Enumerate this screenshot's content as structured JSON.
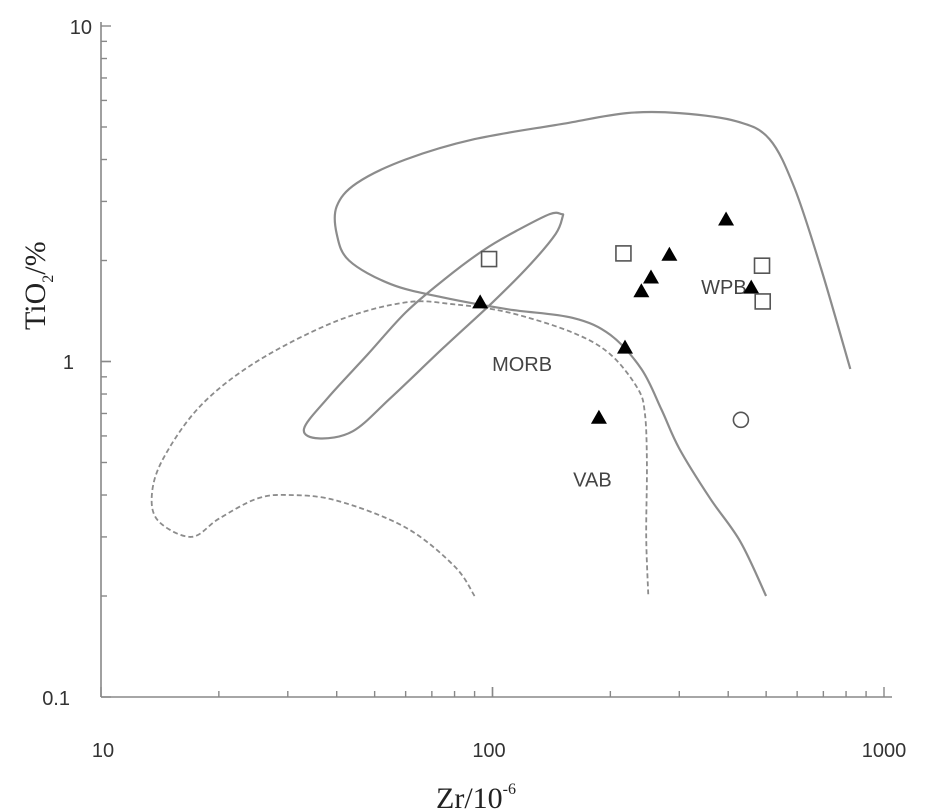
{
  "chart_data": {
    "type": "scatter",
    "scale": "log-log",
    "xlim": [
      10,
      1000
    ],
    "ylim": [
      0.1,
      10
    ],
    "x_ticks": [
      "10",
      "100",
      "1000"
    ],
    "y_ticks": [
      "10",
      "1",
      "0.1"
    ],
    "xlabel": {
      "base": "Zr/10",
      "exponent": "-6"
    },
    "ylabel": {
      "base": "TiO",
      "subscript": "2",
      "suffix": "/%"
    },
    "field_labels": [
      {
        "text": "MORB",
        "x": 119,
        "y": 0.97
      },
      {
        "text": "WPB",
        "x": 390,
        "y": 1.65
      },
      {
        "text": "VAB",
        "x": 180,
        "y": 0.44
      }
    ],
    "fields": [
      {
        "label": "WPB",
        "style": "solid",
        "points": [
          [
            820,
            0.95
          ],
          [
            690,
            1.9
          ],
          [
            590,
            3.3
          ],
          [
            510,
            4.6
          ],
          [
            420,
            5.2
          ],
          [
            300,
            5.5
          ],
          [
            220,
            5.5
          ],
          [
            150,
            5.1
          ],
          [
            90,
            4.6
          ],
          [
            60,
            4.0
          ],
          [
            45,
            3.4
          ],
          [
            40,
            2.9
          ],
          [
            40,
            2.4
          ],
          [
            43,
            2.0
          ],
          [
            55,
            1.7
          ],
          [
            75,
            1.55
          ],
          [
            110,
            1.43
          ],
          [
            160,
            1.35
          ],
          [
            200,
            1.2
          ],
          [
            240,
            0.95
          ],
          [
            270,
            0.72
          ],
          [
            300,
            0.55
          ],
          [
            360,
            0.39
          ],
          [
            430,
            0.29
          ],
          [
            500,
            0.2
          ]
        ]
      },
      {
        "label": "MORB",
        "style": "solid",
        "points": [
          [
            150,
            2.75
          ],
          [
            140,
            2.75
          ],
          [
            115,
            2.45
          ],
          [
            95,
            2.15
          ],
          [
            75,
            1.75
          ],
          [
            60,
            1.4
          ],
          [
            48,
            1.05
          ],
          [
            38,
            0.78
          ],
          [
            33,
            0.63
          ],
          [
            36,
            0.59
          ],
          [
            44,
            0.62
          ],
          [
            55,
            0.78
          ],
          [
            75,
            1.1
          ],
          [
            100,
            1.5
          ],
          [
            125,
            1.95
          ],
          [
            145,
            2.4
          ],
          [
            151,
            2.7
          ]
        ]
      },
      {
        "label": "VAB",
        "style": "dashed",
        "points": [
          [
            90,
            0.2
          ],
          [
            80,
            0.245
          ],
          [
            60,
            0.32
          ],
          [
            40,
            0.385
          ],
          [
            30,
            0.4
          ],
          [
            25,
            0.39
          ],
          [
            20,
            0.34
          ],
          [
            17,
            0.3
          ],
          [
            14,
            0.335
          ],
          [
            13.5,
            0.405
          ],
          [
            14.5,
            0.52
          ],
          [
            18,
            0.74
          ],
          [
            25,
            1.0
          ],
          [
            40,
            1.32
          ],
          [
            60,
            1.5
          ],
          [
            80,
            1.48
          ],
          [
            110,
            1.4
          ],
          [
            160,
            1.22
          ],
          [
            200,
            1.05
          ],
          [
            235,
            0.83
          ],
          [
            245,
            0.7
          ],
          [
            248,
            0.5
          ],
          [
            247,
            0.3
          ],
          [
            250,
            0.2
          ]
        ]
      }
    ],
    "series": [
      {
        "marker": "filled-triangle",
        "points": [
          [
            93,
            1.5
          ],
          [
            187,
            0.68
          ],
          [
            218,
            1.1
          ],
          [
            240,
            1.62
          ],
          [
            254,
            1.78
          ],
          [
            283,
            2.08
          ],
          [
            395,
            2.65
          ],
          [
            458,
            1.66
          ]
        ]
      },
      {
        "marker": "open-square",
        "points": [
          [
            98,
            2.02
          ],
          [
            216,
            2.1
          ],
          [
            488,
            1.93
          ],
          [
            490,
            1.51
          ]
        ]
      },
      {
        "marker": "open-circle",
        "points": [
          [
            431,
            0.67
          ]
        ]
      }
    ]
  }
}
